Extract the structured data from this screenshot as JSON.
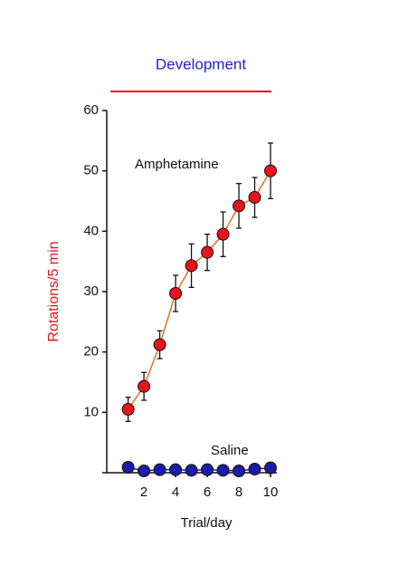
{
  "chart_data": {
    "type": "line",
    "header": "Development",
    "header_color": "#2222cc",
    "header_rule_color": "#e8141c",
    "xlabel": "Trial/day",
    "ylabel": "Rotations/5 min",
    "ylabel_color": "#e8141c",
    "x": [
      1,
      2,
      3,
      4,
      5,
      6,
      7,
      8,
      9,
      10
    ],
    "series": [
      {
        "name": "Amphetamine",
        "color": "#e8141c",
        "line_color": "#e0731f",
        "values": [
          10.5,
          14.3,
          21.2,
          29.7,
          34.3,
          36.5,
          39.5,
          44.2,
          45.6,
          50
        ],
        "errors": [
          2,
          2.3,
          2.3,
          3,
          3.6,
          3,
          3.7,
          3.7,
          3.3,
          4.6
        ]
      },
      {
        "name": "Saline",
        "color": "#1c1ca8",
        "line_color": "#1c1ca8",
        "values": [
          0.9,
          0.3,
          0.5,
          0.5,
          0.4,
          0.5,
          0.4,
          0.3,
          0.6,
          0.8
        ],
        "errors": [
          0.3,
          0.2,
          0.2,
          0.2,
          0.2,
          0.2,
          0.2,
          0.2,
          0.2,
          0.3
        ]
      }
    ],
    "xlim": [
      -0.35,
      10.4
    ],
    "ylim": [
      0,
      60
    ],
    "xticks": [
      2,
      4,
      6,
      8,
      10
    ],
    "yticks": [
      10,
      20,
      30,
      40,
      50,
      60
    ],
    "grid": false
  }
}
